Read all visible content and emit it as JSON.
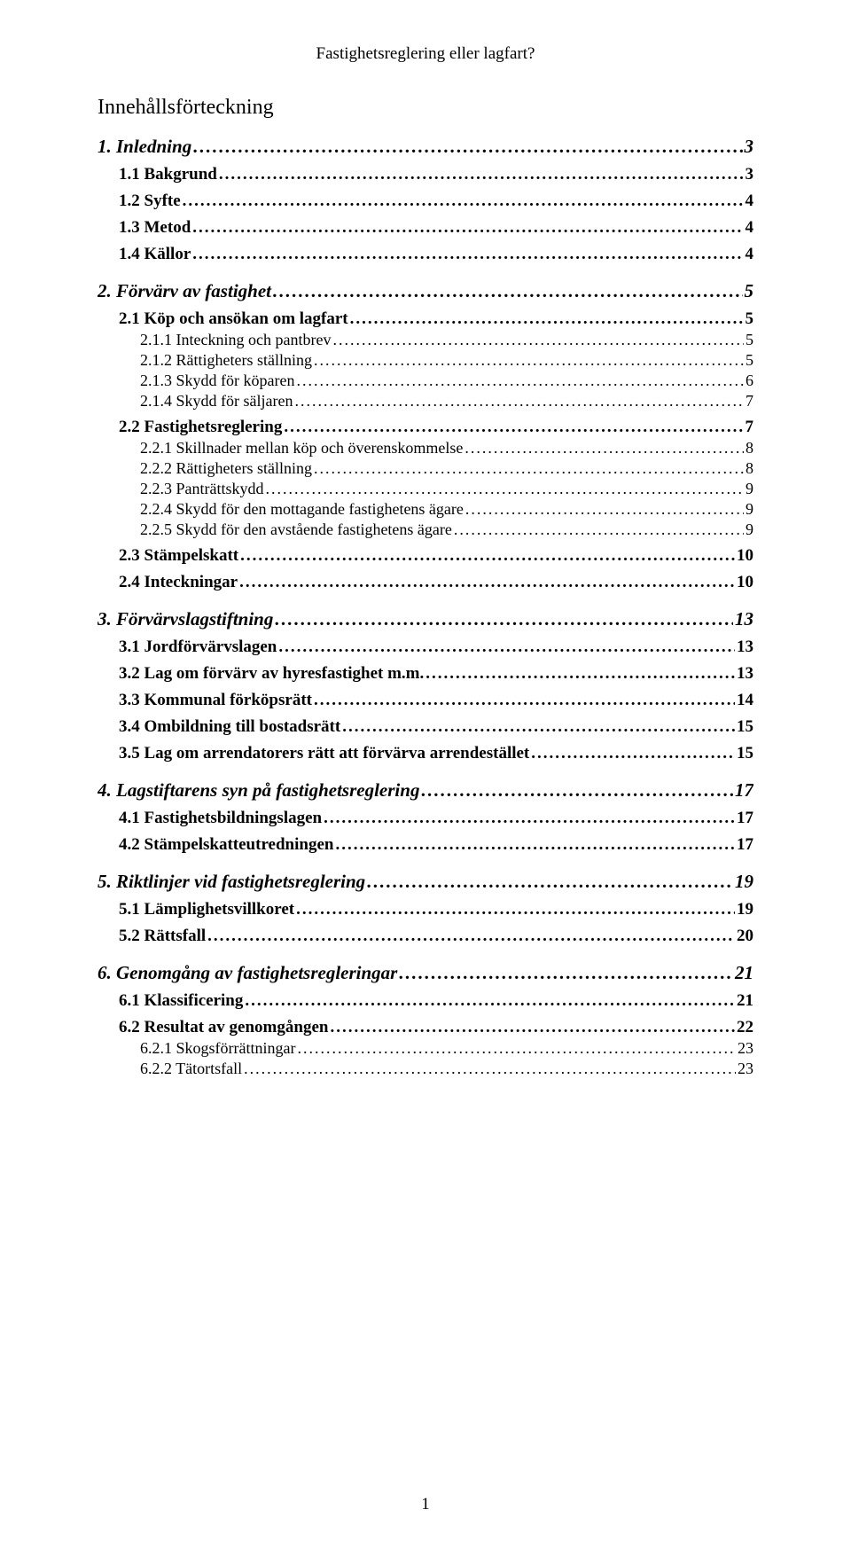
{
  "running_head": "Fastighetsreglering eller lagfart?",
  "toc_title": "Innehållsförteckning",
  "page_number": "1",
  "leader_chars": "........................................................................................................................................................................................................",
  "entries": [
    {
      "level": 1,
      "label": "1. Inledning",
      "page": "3"
    },
    {
      "level": 2,
      "label": "1.1 Bakgrund",
      "page": "3"
    },
    {
      "level": 2,
      "label": "1.2 Syfte",
      "page": "4"
    },
    {
      "level": 2,
      "label": "1.3 Metod",
      "page": "4"
    },
    {
      "level": 2,
      "label": "1.4 Källor",
      "page": "4"
    },
    {
      "level": 1,
      "label": "2. Förvärv av fastighet",
      "page": "5"
    },
    {
      "level": 2,
      "label": "2.1 Köp och ansökan om lagfart",
      "page": "5"
    },
    {
      "level": 3,
      "label": "2.1.1 Inteckning och pantbrev",
      "page": "5"
    },
    {
      "level": 3,
      "label": "2.1.2 Rättigheters ställning",
      "page": "5"
    },
    {
      "level": 3,
      "label": "2.1.3 Skydd för köparen",
      "page": "6"
    },
    {
      "level": 3,
      "label": "2.1.4 Skydd för säljaren",
      "page": "7"
    },
    {
      "level": 2,
      "label": "2.2 Fastighetsreglering",
      "page": "7"
    },
    {
      "level": 3,
      "label": "2.2.1 Skillnader mellan köp och överenskommelse",
      "page": "8"
    },
    {
      "level": 3,
      "label": "2.2.2 Rättigheters ställning",
      "page": "8"
    },
    {
      "level": 3,
      "label": "2.2.3 Panträttskydd",
      "page": "9"
    },
    {
      "level": 3,
      "label": "2.2.4 Skydd för den mottagande fastighetens ägare",
      "page": "9"
    },
    {
      "level": 3,
      "label": "2.2.5 Skydd för den avstående fastighetens ägare",
      "page": "9"
    },
    {
      "level": 2,
      "label": "2.3 Stämpelskatt",
      "page": "10"
    },
    {
      "level": 2,
      "label": "2.4 Inteckningar",
      "page": "10"
    },
    {
      "level": 1,
      "label": "3. Förvärvslagstiftning",
      "page": "13"
    },
    {
      "level": 2,
      "label": "3.1 Jordförvärvslagen",
      "page": "13"
    },
    {
      "level": 2,
      "label": "3.2 Lag om förvärv av hyresfastighet m.m.",
      "page": "13"
    },
    {
      "level": 2,
      "label": "3.3 Kommunal förköpsrätt",
      "page": "14"
    },
    {
      "level": 2,
      "label": "3.4 Ombildning till bostadsrätt",
      "page": "15"
    },
    {
      "level": 2,
      "label": "3.5 Lag om arrendatorers rätt att förvärva arrendestället",
      "page": "15"
    },
    {
      "level": 1,
      "label": "4. Lagstiftarens syn på fastighetsreglering",
      "page": "17"
    },
    {
      "level": 2,
      "label": "4.1 Fastighetsbildningslagen",
      "page": "17"
    },
    {
      "level": 2,
      "label": "4.2 Stämpelskatteutredningen",
      "page": "17"
    },
    {
      "level": 1,
      "label": "5. Riktlinjer vid fastighetsreglering",
      "page": "19"
    },
    {
      "level": 2,
      "label": "5.1 Lämplighetsvillkoret",
      "page": "19"
    },
    {
      "level": 2,
      "label": "5.2 Rättsfall",
      "page": "20"
    },
    {
      "level": 1,
      "label": "6. Genomgång av fastighetsregleringar",
      "page": "21"
    },
    {
      "level": 2,
      "label": "6.1 Klassificering",
      "page": "21"
    },
    {
      "level": 2,
      "label": "6.2 Resultat av genomgången",
      "page": "22"
    },
    {
      "level": 3,
      "label": "6.2.1 Skogsförrättningar",
      "page": "23"
    },
    {
      "level": 3,
      "label": "6.2.2 Tätortsfall",
      "page": "23"
    }
  ]
}
